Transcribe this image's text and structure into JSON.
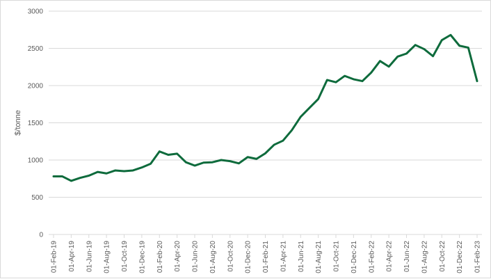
{
  "chart_data": {
    "type": "line",
    "title": "",
    "xlabel": "",
    "ylabel": "$/tonne",
    "ylim": [
      0,
      3000
    ],
    "yticks": [
      0,
      500,
      1000,
      1500,
      2000,
      2500,
      3000
    ],
    "grid": "horizontal",
    "legend": "none",
    "x_tick_labels": [
      "01-Feb-19",
      "01-Apr-19",
      "01-Jun-19",
      "01-Aug-19",
      "01-Oct-19",
      "01-Dec-19",
      "01-Feb-20",
      "01-Apr-20",
      "01-Jun-20",
      "01-Aug-20",
      "01-Oct-20",
      "01-Dec-20",
      "01-Feb-21",
      "01-Apr-21",
      "01-Jun-21",
      "01-Aug-21",
      "01-Oct-21",
      "01-Dec-21",
      "01-Feb-22",
      "01-Apr-22",
      "01-Jun-22",
      "01-Aug-22",
      "01-Oct-22",
      "01-Dec-22",
      "01-Feb-23"
    ],
    "series": [
      {
        "color": "#0e6b3c",
        "x": [
          "2019-02",
          "2019-03",
          "2019-04",
          "2019-05",
          "2019-06",
          "2019-07",
          "2019-08",
          "2019-09",
          "2019-10",
          "2019-11",
          "2019-12",
          "2020-01",
          "2020-02",
          "2020-03",
          "2020-04",
          "2020-05",
          "2020-06",
          "2020-07",
          "2020-08",
          "2020-09",
          "2020-10",
          "2020-11",
          "2020-12",
          "2021-01",
          "2021-02",
          "2021-03",
          "2021-04",
          "2021-05",
          "2021-06",
          "2021-07",
          "2021-08",
          "2021-09",
          "2021-10",
          "2021-11",
          "2021-12",
          "2022-01",
          "2022-02",
          "2022-03",
          "2022-04",
          "2022-05",
          "2022-06",
          "2022-07",
          "2022-08",
          "2022-09",
          "2022-10",
          "2022-11",
          "2022-12",
          "2023-01",
          "2023-02"
        ],
        "values": [
          780,
          780,
          720,
          760,
          790,
          840,
          820,
          860,
          850,
          860,
          900,
          950,
          1115,
          1070,
          1085,
          970,
          925,
          965,
          970,
          1000,
          985,
          955,
          1040,
          1015,
          1090,
          1205,
          1260,
          1400,
          1580,
          1700,
          1820,
          2075,
          2045,
          2130,
          2085,
          2060,
          2175,
          2330,
          2255,
          2390,
          2430,
          2545,
          2490,
          2395,
          2610,
          2680,
          2535,
          2510,
          2060
        ]
      }
    ]
  }
}
